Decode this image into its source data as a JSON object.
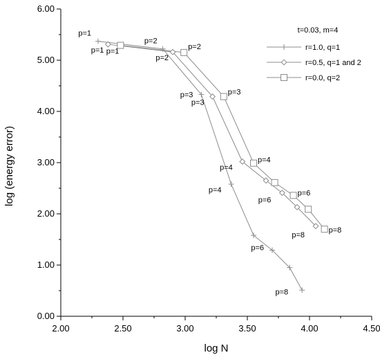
{
  "chart_data": {
    "type": "line",
    "title": "",
    "xlabel": "log N",
    "ylabel": "log (energy error)",
    "xlim": [
      2.0,
      4.5
    ],
    "ylim": [
      0.0,
      6.0
    ],
    "x_ticks": [
      "2.00",
      "2.50",
      "3.00",
      "3.50",
      "4.00",
      "4.50"
    ],
    "y_ticks": [
      "0.00",
      "1.00",
      "2.00",
      "3.00",
      "4.00",
      "5.00",
      "6.00"
    ],
    "grid": false,
    "legend": {
      "title": "t=0.03, m=4",
      "placement": "top-right"
    },
    "line_color": "#8c8c8c",
    "series": [
      {
        "name": "r=1.0, q=1",
        "marker": "plus",
        "points": [
          {
            "x": 2.3,
            "y": 5.37,
            "label": "p=1"
          },
          {
            "x": 2.82,
            "y": 5.22,
            "label": "p=2"
          },
          {
            "x": 3.13,
            "y": 4.33,
            "label": "p=3"
          },
          {
            "x": 3.37,
            "y": 2.58,
            "label": "p=4"
          },
          {
            "x": 3.55,
            "y": 1.58,
            "label": ""
          },
          {
            "x": 3.7,
            "y": 1.29,
            "label": "p=6"
          },
          {
            "x": 3.84,
            "y": 0.95,
            "label": ""
          },
          {
            "x": 3.94,
            "y": 0.51,
            "label": "p=8"
          }
        ]
      },
      {
        "name": "r=0.5, q=1 and 2",
        "marker": "diamond",
        "points": [
          {
            "x": 2.38,
            "y": 5.31,
            "label": "p=1"
          },
          {
            "x": 2.9,
            "y": 5.16,
            "label": "p=2"
          },
          {
            "x": 3.22,
            "y": 4.29,
            "label": "p=3"
          },
          {
            "x": 3.46,
            "y": 3.02,
            "label": "p=4"
          },
          {
            "x": 3.65,
            "y": 2.65,
            "label": ""
          },
          {
            "x": 3.78,
            "y": 2.41,
            "label": "p=6"
          },
          {
            "x": 3.9,
            "y": 2.13,
            "label": ""
          },
          {
            "x": 4.05,
            "y": 1.76,
            "label": "p=8"
          }
        ]
      },
      {
        "name": "r=0.0, q=2",
        "marker": "square",
        "points": [
          {
            "x": 2.48,
            "y": 5.29,
            "label": "p=1"
          },
          {
            "x": 2.99,
            "y": 5.15,
            "label": "p=2"
          },
          {
            "x": 3.31,
            "y": 4.29,
            "label": "p=3"
          },
          {
            "x": 3.55,
            "y": 2.99,
            "label": "p=4"
          },
          {
            "x": 3.72,
            "y": 2.61,
            "label": ""
          },
          {
            "x": 3.87,
            "y": 2.36,
            "label": "p=6"
          },
          {
            "x": 3.99,
            "y": 2.09,
            "label": ""
          },
          {
            "x": 4.12,
            "y": 1.7,
            "label": "p=8"
          }
        ]
      }
    ]
  }
}
